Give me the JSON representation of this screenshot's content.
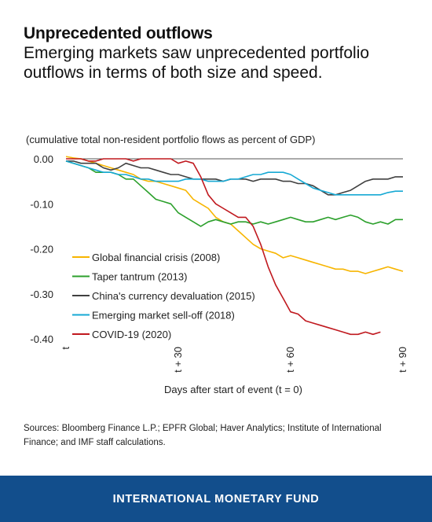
{
  "header": {
    "title": "Unprecedented outflows",
    "subtitle": "Emerging markets saw unprecedented portfolio outflows in terms of both size and speed."
  },
  "chart_data": {
    "type": "line",
    "note": "(cumulative total non-resident portfolio flows as percent of GDP)",
    "xlabel": "Days after start of event (t = 0)",
    "x_ticks": [
      {
        "value": 0,
        "label": "t"
      },
      {
        "value": 30,
        "label": "t + 30"
      },
      {
        "value": 60,
        "label": "t + 60"
      },
      {
        "value": 90,
        "label": "t + 90"
      }
    ],
    "xlim": [
      0,
      90
    ],
    "ylim": [
      -0.4,
      0.0
    ],
    "y_ticks": [
      {
        "value": 0.0,
        "label": "0.00"
      },
      {
        "value": -0.1,
        "label": "-0.10"
      },
      {
        "value": -0.2,
        "label": "-0.20"
      },
      {
        "value": -0.3,
        "label": "-0.30"
      },
      {
        "value": -0.4,
        "label": "-0.40"
      }
    ],
    "legend_position": "bottom-left",
    "series": [
      {
        "name": "Global financial crisis (2008)",
        "color": "#f7b500",
        "x": [
          0,
          2,
          4,
          6,
          8,
          10,
          12,
          14,
          16,
          18,
          20,
          22,
          24,
          26,
          28,
          30,
          32,
          34,
          36,
          38,
          40,
          42,
          44,
          46,
          48,
          50,
          52,
          54,
          56,
          58,
          60,
          62,
          64,
          66,
          68,
          70,
          72,
          74,
          76,
          78,
          80,
          82,
          84,
          86,
          88,
          90
        ],
        "y": [
          0.005,
          0.002,
          0.0,
          -0.005,
          -0.01,
          -0.015,
          -0.02,
          -0.025,
          -0.03,
          -0.035,
          -0.045,
          -0.05,
          -0.05,
          -0.055,
          -0.06,
          -0.065,
          -0.07,
          -0.09,
          -0.1,
          -0.11,
          -0.13,
          -0.14,
          -0.145,
          -0.16,
          -0.175,
          -0.19,
          -0.2,
          -0.205,
          -0.21,
          -0.22,
          -0.215,
          -0.22,
          -0.225,
          -0.23,
          -0.235,
          -0.24,
          -0.245,
          -0.245,
          -0.25,
          -0.25,
          -0.255,
          -0.25,
          -0.245,
          -0.24,
          -0.245,
          -0.25
        ]
      },
      {
        "name": "Taper tantrum (2013)",
        "color": "#2ca02c",
        "x": [
          0,
          2,
          4,
          6,
          8,
          10,
          12,
          14,
          16,
          18,
          20,
          22,
          24,
          26,
          28,
          30,
          32,
          34,
          36,
          38,
          40,
          42,
          44,
          46,
          48,
          50,
          52,
          54,
          56,
          58,
          60,
          62,
          64,
          66,
          68,
          70,
          72,
          74,
          76,
          78,
          80,
          82,
          84,
          86,
          88,
          90
        ],
        "y": [
          -0.005,
          -0.01,
          -0.015,
          -0.02,
          -0.03,
          -0.03,
          -0.03,
          -0.035,
          -0.045,
          -0.045,
          -0.06,
          -0.075,
          -0.09,
          -0.095,
          -0.1,
          -0.12,
          -0.13,
          -0.14,
          -0.15,
          -0.14,
          -0.135,
          -0.14,
          -0.145,
          -0.14,
          -0.14,
          -0.145,
          -0.14,
          -0.145,
          -0.14,
          -0.135,
          -0.13,
          -0.135,
          -0.14,
          -0.14,
          -0.135,
          -0.13,
          -0.135,
          -0.13,
          -0.125,
          -0.13,
          -0.14,
          -0.145,
          -0.14,
          -0.145,
          -0.135,
          -0.135
        ]
      },
      {
        "name": "China's currency devaluation (2015)",
        "color": "#404040",
        "x": [
          0,
          2,
          4,
          6,
          8,
          10,
          12,
          14,
          16,
          18,
          20,
          22,
          24,
          26,
          28,
          30,
          32,
          34,
          36,
          38,
          40,
          42,
          44,
          46,
          48,
          50,
          52,
          54,
          56,
          58,
          60,
          62,
          64,
          66,
          68,
          70,
          72,
          74,
          76,
          78,
          80,
          82,
          84,
          86,
          88,
          90
        ],
        "y": [
          -0.005,
          -0.005,
          -0.01,
          -0.01,
          -0.01,
          -0.02,
          -0.025,
          -0.02,
          -0.01,
          -0.015,
          -0.02,
          -0.02,
          -0.025,
          -0.03,
          -0.035,
          -0.035,
          -0.04,
          -0.045,
          -0.045,
          -0.045,
          -0.045,
          -0.05,
          -0.045,
          -0.045,
          -0.045,
          -0.05,
          -0.045,
          -0.045,
          -0.045,
          -0.05,
          -0.05,
          -0.055,
          -0.055,
          -0.06,
          -0.07,
          -0.08,
          -0.08,
          -0.075,
          -0.07,
          -0.06,
          -0.05,
          -0.045,
          -0.045,
          -0.045,
          -0.04,
          -0.04
        ]
      },
      {
        "name": "Emerging market sell-off (2018)",
        "color": "#17a9d4",
        "x": [
          0,
          2,
          4,
          6,
          8,
          10,
          12,
          14,
          16,
          18,
          20,
          22,
          24,
          26,
          28,
          30,
          32,
          34,
          36,
          38,
          40,
          42,
          44,
          46,
          48,
          50,
          52,
          54,
          56,
          58,
          60,
          62,
          64,
          66,
          68,
          70,
          72,
          74,
          76,
          78,
          80,
          82,
          84,
          86,
          88,
          90
        ],
        "y": [
          -0.005,
          -0.01,
          -0.015,
          -0.02,
          -0.025,
          -0.03,
          -0.03,
          -0.035,
          -0.035,
          -0.04,
          -0.045,
          -0.045,
          -0.05,
          -0.05,
          -0.05,
          -0.05,
          -0.045,
          -0.045,
          -0.045,
          -0.05,
          -0.05,
          -0.05,
          -0.045,
          -0.045,
          -0.04,
          -0.035,
          -0.035,
          -0.03,
          -0.03,
          -0.03,
          -0.035,
          -0.045,
          -0.055,
          -0.065,
          -0.07,
          -0.075,
          -0.08,
          -0.08,
          -0.08,
          -0.08,
          -0.08,
          -0.08,
          -0.08,
          -0.075,
          -0.072,
          -0.072
        ]
      },
      {
        "name": "COVID-19 (2020)",
        "color": "#c0191f",
        "x": [
          0,
          2,
          4,
          6,
          8,
          10,
          12,
          14,
          16,
          18,
          20,
          22,
          24,
          26,
          28,
          30,
          32,
          34,
          36,
          38,
          40,
          42,
          44,
          46,
          48,
          50,
          52,
          54,
          56,
          58,
          60,
          62,
          64,
          66,
          68,
          70,
          72,
          74,
          76,
          78,
          80,
          82,
          84
        ],
        "y": [
          0.0,
          0.0,
          0.0,
          -0.005,
          -0.005,
          0.0,
          0.0,
          0.0,
          0.0,
          -0.005,
          0.0,
          0.0,
          0.0,
          0.0,
          0.0,
          -0.01,
          -0.005,
          -0.01,
          -0.04,
          -0.08,
          -0.1,
          -0.11,
          -0.12,
          -0.13,
          -0.13,
          -0.15,
          -0.19,
          -0.24,
          -0.28,
          -0.31,
          -0.34,
          -0.345,
          -0.36,
          -0.365,
          -0.37,
          -0.375,
          -0.38,
          -0.385,
          -0.39,
          -0.39,
          -0.385,
          -0.39,
          -0.385
        ]
      }
    ]
  },
  "sources": "Sources: Bloomberg Finance L.P.;  EPFR Global; Haver Analytics; Institute of International Finance; and IMF staff calculations.",
  "footer": {
    "org": "INTERNATIONAL MONETARY FUND"
  }
}
